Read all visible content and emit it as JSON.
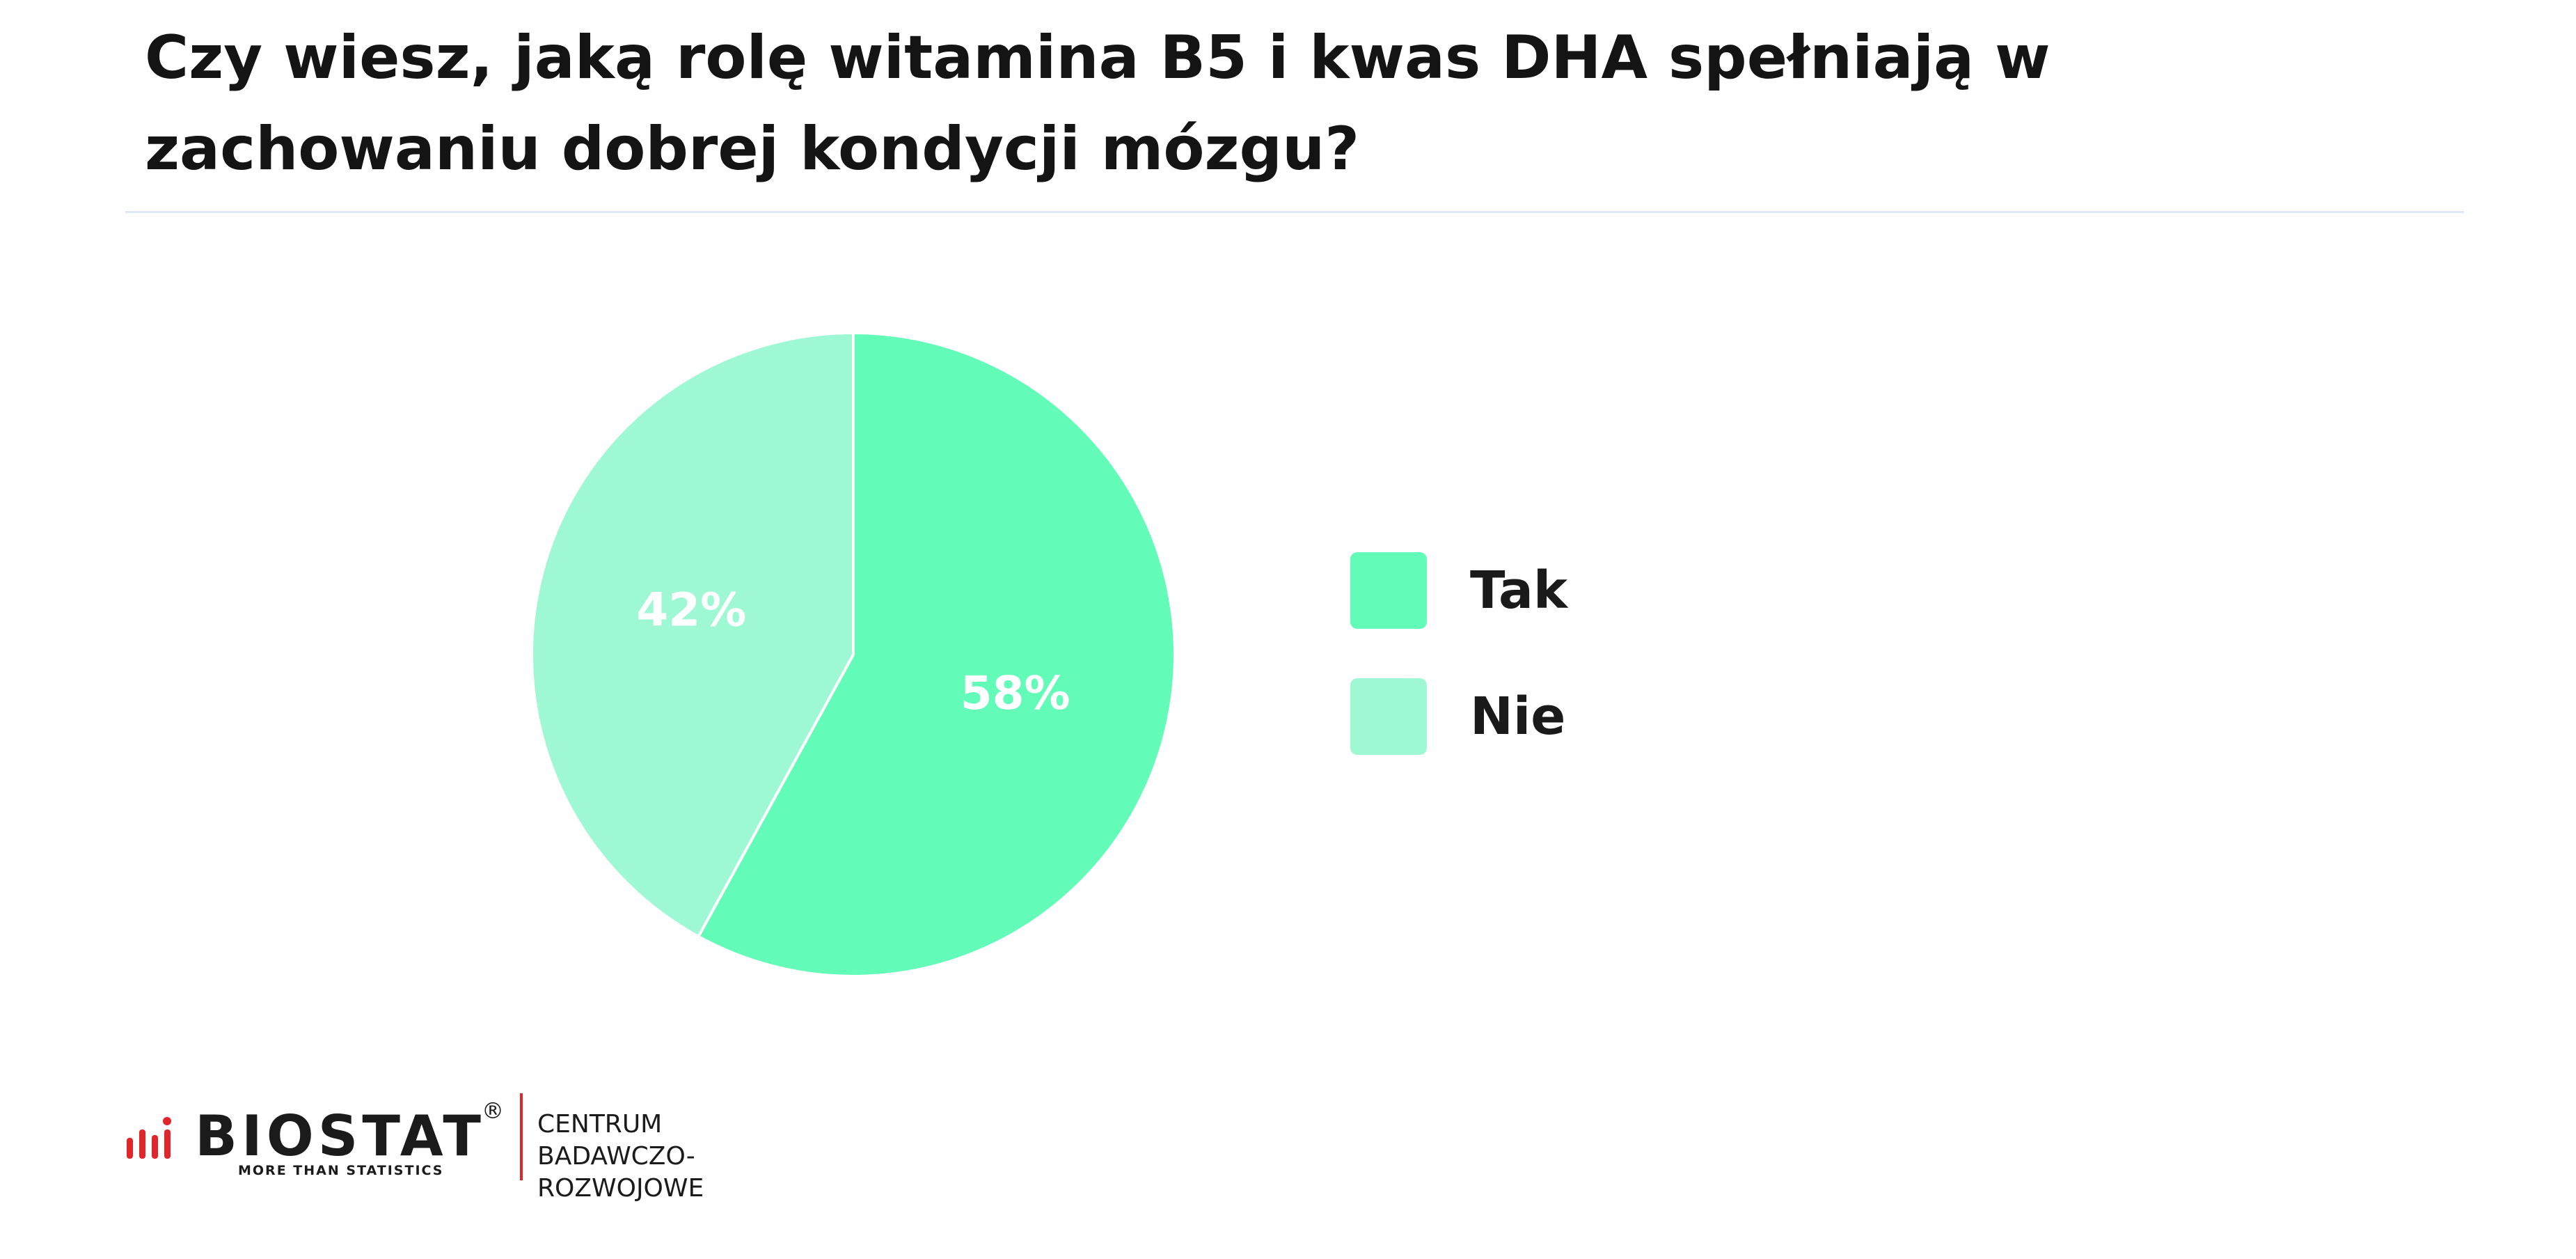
{
  "title": "Czy wiesz, jaką rolę witamina B5 i kwas DHA spełniają w zachowaniu dobrej kondycji mózgu?",
  "chart_data": {
    "type": "pie",
    "title": "Czy wiesz, jaką rolę witamina B5 i kwas DHA spełniają w zachowaniu dobrej kondycji mózgu?",
    "slices": [
      {
        "label": "Tak",
        "value": 58,
        "value_label": "58%",
        "color": "#63fbb8"
      },
      {
        "label": "Nie",
        "value": 42,
        "value_label": "42%",
        "color": "#9ef8d4"
      }
    ],
    "legend_placement": "right"
  },
  "legend": [
    {
      "label": "Tak",
      "color": "#63fbb8"
    },
    {
      "label": "Nie",
      "color": "#9ef8d4"
    }
  ],
  "footer": {
    "logo_name": "BIOSTAT",
    "logo_tagline": "MORE THAN STATISTICS",
    "registered_mark": "®",
    "org_line1": "CENTRUM",
    "org_line2": "BADAWCZO-ROZWOJOWE",
    "accent_color": "#e0262b"
  }
}
